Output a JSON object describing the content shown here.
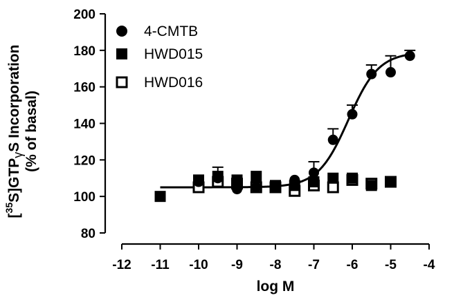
{
  "chart_data": {
    "type": "scatter",
    "xlabel": "log M",
    "ylabel_line1": "[35S]GTPγS Incorporation",
    "ylabel_line2": "(% of basal)",
    "xlim": [
      -12,
      -4
    ],
    "ylim": [
      80,
      200
    ],
    "xticks": [
      -12,
      -11,
      -10,
      -9,
      -8,
      -7,
      -6,
      -5,
      -4
    ],
    "yticks": [
      80,
      100,
      120,
      140,
      160,
      180,
      200
    ],
    "legend_position": "top-left",
    "series": [
      {
        "name": "4-CMTB",
        "marker": "filled-circle",
        "x": [
          -11,
          -10,
          -9.5,
          -9,
          -8.5,
          -8,
          -7.5,
          -7,
          -6.5,
          -6,
          -5.5,
          -5,
          -4.5
        ],
        "y": [
          100,
          108,
          110,
          104,
          105,
          105,
          109,
          113,
          131,
          145,
          167,
          168,
          177
        ],
        "err": [
          0,
          0,
          0,
          0,
          0,
          0,
          0,
          6,
          6,
          5,
          5,
          9,
          3
        ]
      },
      {
        "name": "HWD015",
        "marker": "filled-square",
        "x": [
          -11,
          -10,
          -9.5,
          -9,
          -8.5,
          -8,
          -7.5,
          -7,
          -6.5,
          -6,
          -5.5,
          -5
        ],
        "y": [
          100,
          109,
          111,
          109,
          111,
          106,
          106,
          108,
          110,
          110,
          106,
          108
        ],
        "err": [
          0,
          0,
          5,
          0,
          0,
          0,
          0,
          0,
          0,
          0,
          0,
          0
        ]
      },
      {
        "name": "HWD016",
        "marker": "open-square",
        "x": [
          -10,
          -9.5,
          -9,
          -8.5,
          -8,
          -7.5,
          -7,
          -6.5,
          -6,
          -5.5,
          -5
        ],
        "y": [
          105,
          108,
          107,
          105,
          105,
          103,
          106,
          105,
          109,
          107,
          108
        ],
        "err": [
          0,
          0,
          0,
          0,
          0,
          0,
          0,
          0,
          0,
          0,
          0
        ]
      }
    ],
    "fit_curve": {
      "bottom": 105,
      "top": 179,
      "log_ec50": -6.1,
      "hill": 1.1,
      "x_range": [
        -11,
        -4.5
      ]
    }
  }
}
